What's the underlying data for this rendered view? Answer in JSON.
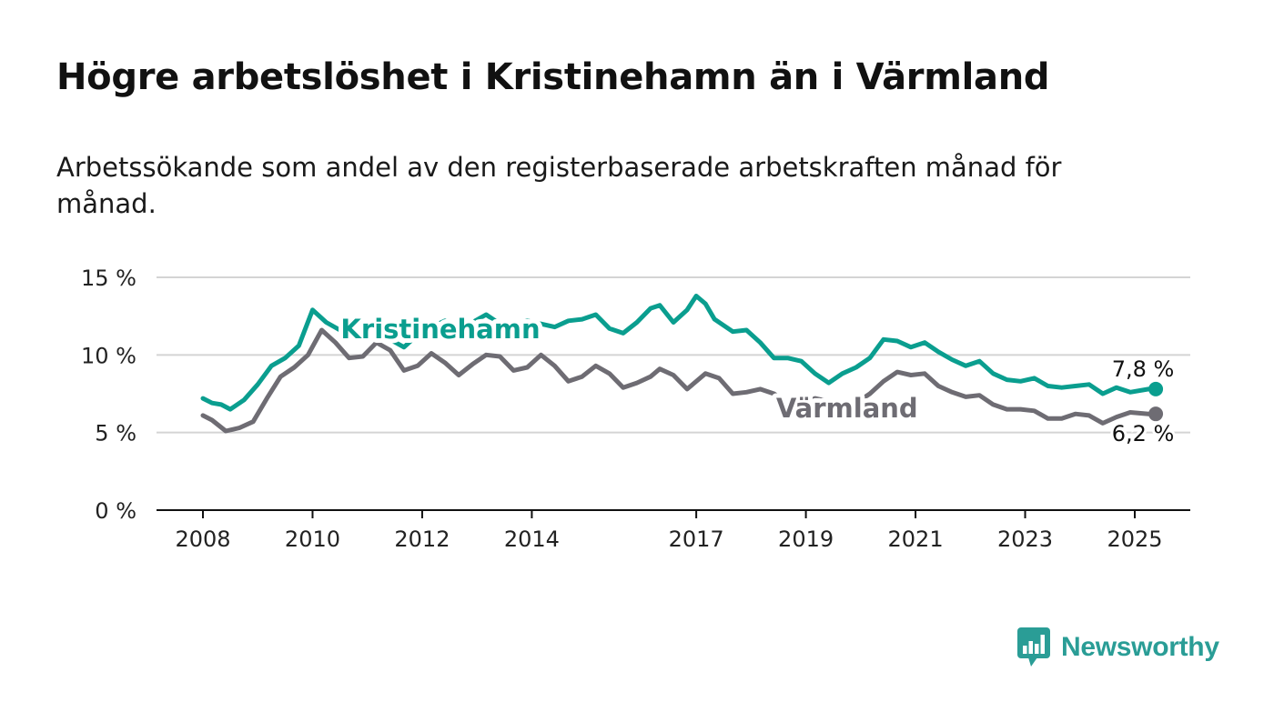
{
  "title": "Högre arbetslöshet i Kristinehamn än i Värmland",
  "subtitle": "Arbetssökande som andel av den registerbaserade arbetskraften månad för månad.",
  "brand": {
    "name": "Newsworthy",
    "color": "#2a9d96",
    "icon": "bar-chart-speech-bubble-icon"
  },
  "chart_data": {
    "type": "line",
    "x_start": "2008-01",
    "x_end": "2025-04",
    "ylim": [
      0,
      15
    ],
    "y_ticks": [
      {
        "value": 0,
        "label": "0 %"
      },
      {
        "value": 5,
        "label": "5 %"
      },
      {
        "value": 10,
        "label": "10 %"
      },
      {
        "value": 15,
        "label": "15 %"
      }
    ],
    "x_ticks": [
      {
        "year": 2008,
        "label": "2008"
      },
      {
        "year": 2010,
        "label": "2010"
      },
      {
        "year": 2012,
        "label": "2012"
      },
      {
        "year": 2014,
        "label": "2014"
      },
      {
        "year": 2017,
        "label": "2017"
      },
      {
        "year": 2019,
        "label": "2019"
      },
      {
        "year": 2021,
        "label": "2021"
      },
      {
        "year": 2023,
        "label": "2023"
      },
      {
        "year": 2025,
        "label": "2025"
      }
    ],
    "grid": true,
    "series": [
      {
        "name": "Kristinehamn",
        "color": "#0a9e8f",
        "end_label": "7,8 %",
        "label_anchor": "2012-05",
        "points": [
          [
            "2008-01",
            7.2
          ],
          [
            "2008-03",
            6.9
          ],
          [
            "2008-05",
            6.8
          ],
          [
            "2008-07",
            6.5
          ],
          [
            "2008-10",
            7.1
          ],
          [
            "2009-01",
            8.1
          ],
          [
            "2009-04",
            9.3
          ],
          [
            "2009-07",
            9.8
          ],
          [
            "2009-10",
            10.6
          ],
          [
            "2010-01",
            12.9
          ],
          [
            "2010-04",
            12.1
          ],
          [
            "2010-07",
            11.6
          ],
          [
            "2010-10",
            11.1
          ],
          [
            "2011-01",
            11.1
          ],
          [
            "2011-03",
            11.8
          ],
          [
            "2011-06",
            11.0
          ],
          [
            "2011-09",
            10.5
          ],
          [
            "2011-12",
            11.3
          ],
          [
            "2012-03",
            11.8
          ],
          [
            "2012-06",
            12.2
          ],
          [
            "2012-09",
            11.3
          ],
          [
            "2012-12",
            12.1
          ],
          [
            "2013-03",
            12.6
          ],
          [
            "2013-06",
            12.0
          ],
          [
            "2013-09",
            11.9
          ],
          [
            "2013-12",
            12.2
          ],
          [
            "2014-03",
            12.0
          ],
          [
            "2014-06",
            11.8
          ],
          [
            "2014-09",
            12.2
          ],
          [
            "2014-12",
            12.3
          ],
          [
            "2015-03",
            12.6
          ],
          [
            "2015-06",
            11.7
          ],
          [
            "2015-09",
            11.4
          ],
          [
            "2015-12",
            12.1
          ],
          [
            "2016-03",
            13.0
          ],
          [
            "2016-05",
            13.2
          ],
          [
            "2016-08",
            12.1
          ],
          [
            "2016-11",
            12.9
          ],
          [
            "2017-01",
            13.8
          ],
          [
            "2017-03",
            13.3
          ],
          [
            "2017-05",
            12.3
          ],
          [
            "2017-09",
            11.5
          ],
          [
            "2017-12",
            11.6
          ],
          [
            "2018-03",
            10.8
          ],
          [
            "2018-06",
            9.8
          ],
          [
            "2018-09",
            9.8
          ],
          [
            "2018-12",
            9.6
          ],
          [
            "2019-03",
            8.8
          ],
          [
            "2019-06",
            8.2
          ],
          [
            "2019-09",
            8.8
          ],
          [
            "2019-12",
            9.2
          ],
          [
            "2020-03",
            9.8
          ],
          [
            "2020-06",
            11.0
          ],
          [
            "2020-09",
            10.9
          ],
          [
            "2020-12",
            10.5
          ],
          [
            "2021-03",
            10.8
          ],
          [
            "2021-06",
            10.2
          ],
          [
            "2021-09",
            9.7
          ],
          [
            "2021-12",
            9.3
          ],
          [
            "2022-03",
            9.6
          ],
          [
            "2022-06",
            8.8
          ],
          [
            "2022-09",
            8.4
          ],
          [
            "2022-12",
            8.3
          ],
          [
            "2023-03",
            8.5
          ],
          [
            "2023-06",
            8.0
          ],
          [
            "2023-09",
            7.9
          ],
          [
            "2023-12",
            8.0
          ],
          [
            "2024-03",
            8.1
          ],
          [
            "2024-06",
            7.5
          ],
          [
            "2024-09",
            7.9
          ],
          [
            "2024-12",
            7.6
          ],
          [
            "2025-04",
            7.8
          ]
        ]
      },
      {
        "name": "Värmland",
        "color": "#6e6c73",
        "end_label": "6,2 %",
        "label_anchor": "2019-10",
        "points": [
          [
            "2008-01",
            6.1
          ],
          [
            "2008-03",
            5.8
          ],
          [
            "2008-06",
            5.1
          ],
          [
            "2008-09",
            5.3
          ],
          [
            "2008-12",
            5.7
          ],
          [
            "2009-03",
            7.2
          ],
          [
            "2009-06",
            8.6
          ],
          [
            "2009-09",
            9.2
          ],
          [
            "2009-12",
            10.0
          ],
          [
            "2010-03",
            11.6
          ],
          [
            "2010-06",
            10.8
          ],
          [
            "2010-09",
            9.8
          ],
          [
            "2010-12",
            9.9
          ],
          [
            "2011-03",
            10.8
          ],
          [
            "2011-06",
            10.3
          ],
          [
            "2011-09",
            9.0
          ],
          [
            "2011-12",
            9.3
          ],
          [
            "2012-03",
            10.1
          ],
          [
            "2012-06",
            9.5
          ],
          [
            "2012-09",
            8.7
          ],
          [
            "2012-12",
            9.4
          ],
          [
            "2013-03",
            10.0
          ],
          [
            "2013-06",
            9.9
          ],
          [
            "2013-09",
            9.0
          ],
          [
            "2013-12",
            9.2
          ],
          [
            "2014-03",
            10.0
          ],
          [
            "2014-06",
            9.3
          ],
          [
            "2014-09",
            8.3
          ],
          [
            "2014-12",
            8.6
          ],
          [
            "2015-03",
            9.3
          ],
          [
            "2015-06",
            8.8
          ],
          [
            "2015-09",
            7.9
          ],
          [
            "2015-12",
            8.2
          ],
          [
            "2016-03",
            8.6
          ],
          [
            "2016-05",
            9.1
          ],
          [
            "2016-08",
            8.7
          ],
          [
            "2016-11",
            7.8
          ],
          [
            "2017-03",
            8.8
          ],
          [
            "2017-06",
            8.5
          ],
          [
            "2017-09",
            7.5
          ],
          [
            "2017-12",
            7.6
          ],
          [
            "2018-03",
            7.8
          ],
          [
            "2018-06",
            7.5
          ],
          [
            "2018-09",
            6.9
          ],
          [
            "2018-12",
            6.7
          ],
          [
            "2019-03",
            7.2
          ],
          [
            "2019-06",
            7.0
          ],
          [
            "2019-09",
            6.7
          ],
          [
            "2019-12",
            6.9
          ],
          [
            "2020-03",
            7.5
          ],
          [
            "2020-06",
            8.3
          ],
          [
            "2020-09",
            8.9
          ],
          [
            "2020-12",
            8.7
          ],
          [
            "2021-03",
            8.8
          ],
          [
            "2021-06",
            8.0
          ],
          [
            "2021-09",
            7.6
          ],
          [
            "2021-12",
            7.3
          ],
          [
            "2022-03",
            7.4
          ],
          [
            "2022-06",
            6.8
          ],
          [
            "2022-09",
            6.5
          ],
          [
            "2022-12",
            6.5
          ],
          [
            "2023-03",
            6.4
          ],
          [
            "2023-06",
            5.9
          ],
          [
            "2023-09",
            5.9
          ],
          [
            "2023-12",
            6.2
          ],
          [
            "2024-03",
            6.1
          ],
          [
            "2024-06",
            5.6
          ],
          [
            "2024-09",
            6.0
          ],
          [
            "2024-12",
            6.3
          ],
          [
            "2025-04",
            6.2
          ]
        ]
      }
    ]
  }
}
